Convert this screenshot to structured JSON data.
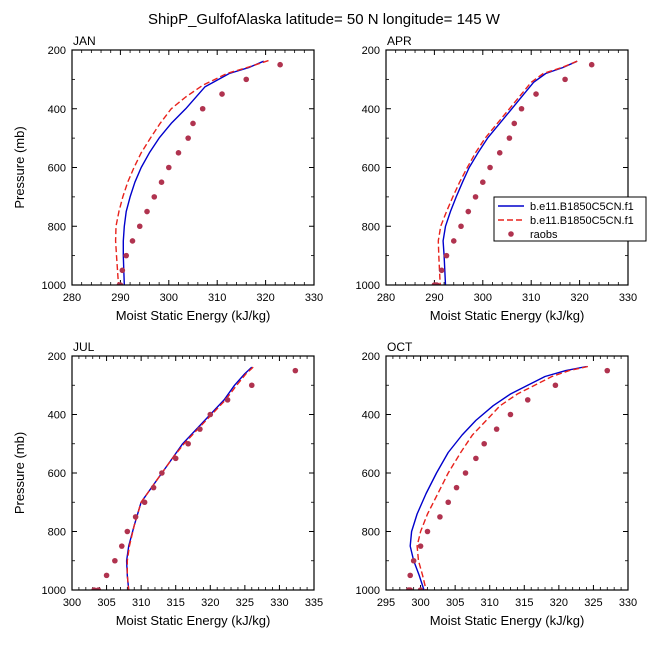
{
  "figure": {
    "title": "ShipP_GulfofAlaska  latitude= 50 N longitude= 145 W"
  },
  "legend": {
    "entries": [
      {
        "label": "b.e11.B1850C5CN.f1",
        "color": "#0000cc",
        "style": "solid"
      },
      {
        "label": "b.e11.B1850C5CN.f1",
        "color": "#e8221c",
        "style": "dashed"
      },
      {
        "label": "raobs",
        "color": "#b0334f",
        "style": "marker"
      }
    ]
  },
  "chart_data": [
    {
      "type": "line",
      "panel_label": "JAN",
      "xlabel": "Moist Static Energy (kJ/kg)",
      "ylabel": "Pressure (mb)",
      "xlim": [
        280,
        330
      ],
      "ylim": [
        1000,
        200
      ],
      "y_reversed": true,
      "xticks": [
        280,
        290,
        300,
        310,
        320,
        330
      ],
      "yticks": [
        200,
        400,
        600,
        800,
        1000
      ],
      "series": [
        {
          "name": "b.e11.B1850C5CN.f1",
          "color": "#0000cc",
          "style": "solid",
          "x": [
            319.6,
            316.5,
            312.5,
            307.5,
            303.5,
            300.5,
            298.0,
            296.0,
            294.3,
            293.0,
            292.0,
            291.2,
            290.8,
            290.6,
            290.6,
            290.7,
            290.8
          ],
          "y": [
            238,
            260,
            280,
            325,
            400,
            450,
            500,
            550,
            600,
            650,
            700,
            750,
            800,
            850,
            900,
            950,
            1000
          ]
        },
        {
          "name": "b.e11.B1850C5CN.f1",
          "color": "#e8221c",
          "style": "dashed",
          "x": [
            320.6,
            316.5,
            312.0,
            307.0,
            303.5,
            300.5,
            298.2,
            296.2,
            294.3,
            292.8,
            291.5,
            290.5,
            289.7,
            289.1,
            289.0,
            289.2,
            289.6
          ],
          "y": [
            236,
            258,
            280,
            320,
            360,
            400,
            450,
            500,
            550,
            600,
            650,
            700,
            750,
            800,
            850,
            900,
            1000
          ]
        },
        {
          "name": "raobs",
          "color": "#b0334f",
          "style": "marker",
          "x": [
            323.0,
            316.0,
            311.0,
            307.0,
            305.0,
            304.0,
            302.0,
            300.0,
            298.5,
            297.0,
            295.5,
            294.0,
            292.5,
            291.2,
            290.4,
            290.0,
            289.8
          ],
          "y": [
            250,
            300,
            350,
            400,
            450,
            500,
            550,
            600,
            650,
            700,
            750,
            800,
            850,
            900,
            950,
            1000,
            1000
          ]
        }
      ]
    },
    {
      "type": "line",
      "panel_label": "APR",
      "xlabel": "Moist Static Energy (kJ/kg)",
      "ylabel": "",
      "xlim": [
        280,
        330
      ],
      "ylim": [
        1000,
        200
      ],
      "y_reversed": true,
      "xticks": [
        280,
        290,
        300,
        310,
        320,
        330
      ],
      "yticks": [
        200,
        400,
        600,
        800,
        1000
      ],
      "series": [
        {
          "name": "b.e11.B1850C5CN.f1",
          "color": "#0000cc",
          "style": "solid",
          "x": [
            319.5,
            316.5,
            313.0,
            310.5,
            308.5,
            306.0,
            303.5,
            301.0,
            299.0,
            297.2,
            295.8,
            294.5,
            293.3,
            292.3,
            291.8,
            292.0,
            292.3
          ],
          "y": [
            238,
            260,
            280,
            310,
            350,
            400,
            450,
            500,
            550,
            600,
            650,
            700,
            750,
            800,
            850,
            900,
            1000
          ]
        },
        {
          "name": "b.e11.B1850C5CN.f1",
          "color": "#e8221c",
          "style": "dashed",
          "x": [
            319.5,
            316.3,
            312.5,
            310.0,
            308.0,
            305.5,
            303.0,
            300.5,
            298.5,
            296.8,
            295.2,
            293.8,
            292.5,
            291.3,
            290.8,
            290.9,
            291.2
          ],
          "y": [
            238,
            260,
            280,
            310,
            350,
            400,
            450,
            500,
            550,
            600,
            650,
            700,
            750,
            800,
            850,
            900,
            1000
          ]
        },
        {
          "name": "raobs",
          "color": "#b0334f",
          "style": "marker",
          "x": [
            322.5,
            317.0,
            311.0,
            308.0,
            306.5,
            305.5,
            303.5,
            301.5,
            300.0,
            298.5,
            297.0,
            295.5,
            294.0,
            292.5,
            291.5,
            290.5,
            290.0,
            290.2
          ],
          "y": [
            250,
            300,
            350,
            400,
            450,
            500,
            550,
            600,
            650,
            700,
            750,
            800,
            850,
            900,
            950,
            1000,
            1000,
            1000
          ]
        }
      ]
    },
    {
      "type": "line",
      "panel_label": "JUL",
      "xlabel": "Moist Static Energy (kJ/kg)",
      "ylabel": "Pressure (mb)",
      "xlim": [
        300,
        335
      ],
      "ylim": [
        1000,
        200
      ],
      "y_reversed": true,
      "xticks": [
        300,
        305,
        310,
        315,
        320,
        325,
        330,
        335
      ],
      "yticks": [
        200,
        400,
        600,
        800,
        1000
      ],
      "series": [
        {
          "name": "b.e11.B1850C5CN.f1",
          "color": "#0000cc",
          "style": "solid",
          "x": [
            326.0,
            325.0,
            323.5,
            322.0,
            320.0,
            318.0,
            316.0,
            314.5,
            313.0,
            311.5,
            310.0,
            309.0,
            308.2,
            307.9,
            308.0,
            308.2
          ],
          "y": [
            238,
            260,
            300,
            350,
            400,
            450,
            500,
            550,
            600,
            650,
            700,
            780,
            850,
            900,
            950,
            1000
          ]
        },
        {
          "name": "b.e11.B1850C5CN.f1",
          "color": "#e8221c",
          "style": "dashed",
          "x": [
            326.2,
            325.2,
            323.8,
            322.2,
            320.2,
            318.2,
            316.2,
            314.5,
            313.0,
            311.5,
            310.0,
            309.0,
            308.3,
            308.0,
            308.0,
            308.2
          ],
          "y": [
            238,
            260,
            300,
            350,
            400,
            450,
            500,
            550,
            600,
            650,
            700,
            780,
            850,
            900,
            950,
            1000
          ]
        },
        {
          "name": "raobs",
          "color": "#b0334f",
          "style": "marker",
          "x": [
            332.3,
            326.0,
            322.5,
            320.0,
            318.5,
            316.8,
            315.0,
            313.0,
            311.8,
            310.5,
            309.2,
            308.0,
            307.2,
            306.2,
            305.0,
            303.8,
            303.2
          ],
          "y": [
            250,
            300,
            350,
            400,
            450,
            500,
            550,
            600,
            650,
            700,
            750,
            800,
            850,
            900,
            950,
            1000,
            1000
          ]
        }
      ]
    },
    {
      "type": "line",
      "panel_label": "OCT",
      "xlabel": "Moist Static Energy (kJ/kg)",
      "ylabel": "",
      "xlim": [
        295,
        330
      ],
      "ylim": [
        1000,
        200
      ],
      "y_reversed": true,
      "xticks": [
        295,
        300,
        305,
        310,
        315,
        320,
        325,
        330
      ],
      "yticks": [
        200,
        400,
        600,
        800,
        1000
      ],
      "series": [
        {
          "name": "b.e11.B1850C5CN.f1",
          "color": "#0000cc",
          "style": "solid",
          "x": [
            324.0,
            321.0,
            318.0,
            315.5,
            313.0,
            310.5,
            308.0,
            306.0,
            304.0,
            302.3,
            300.8,
            299.5,
            298.7,
            298.5,
            299.0,
            299.8,
            300.5
          ],
          "y": [
            236,
            250,
            270,
            300,
            330,
            370,
            420,
            470,
            530,
            600,
            670,
            740,
            800,
            850,
            900,
            950,
            1000
          ]
        },
        {
          "name": "b.e11.B1850C5CN.f1",
          "color": "#e8221c",
          "style": "dashed",
          "x": [
            324.2,
            321.5,
            319.0,
            316.5,
            314.0,
            311.5,
            309.5,
            307.5,
            305.8,
            304.0,
            302.5,
            301.0,
            300.0,
            299.5,
            299.7,
            300.3,
            300.8
          ],
          "y": [
            236,
            250,
            270,
            300,
            330,
            370,
            420,
            470,
            530,
            600,
            670,
            740,
            800,
            850,
            900,
            950,
            1000
          ]
        },
        {
          "name": "raobs",
          "color": "#b0334f",
          "style": "marker",
          "x": [
            327.0,
            319.5,
            315.5,
            313.0,
            311.0,
            309.2,
            308.0,
            306.5,
            305.2,
            304.0,
            302.8,
            301.0,
            300.0,
            299.0,
            298.5,
            298.3,
            298.5,
            300.0
          ],
          "y": [
            250,
            300,
            350,
            400,
            450,
            500,
            550,
            600,
            650,
            700,
            750,
            800,
            850,
            900,
            950,
            1000,
            1000,
            1000
          ]
        }
      ]
    }
  ]
}
